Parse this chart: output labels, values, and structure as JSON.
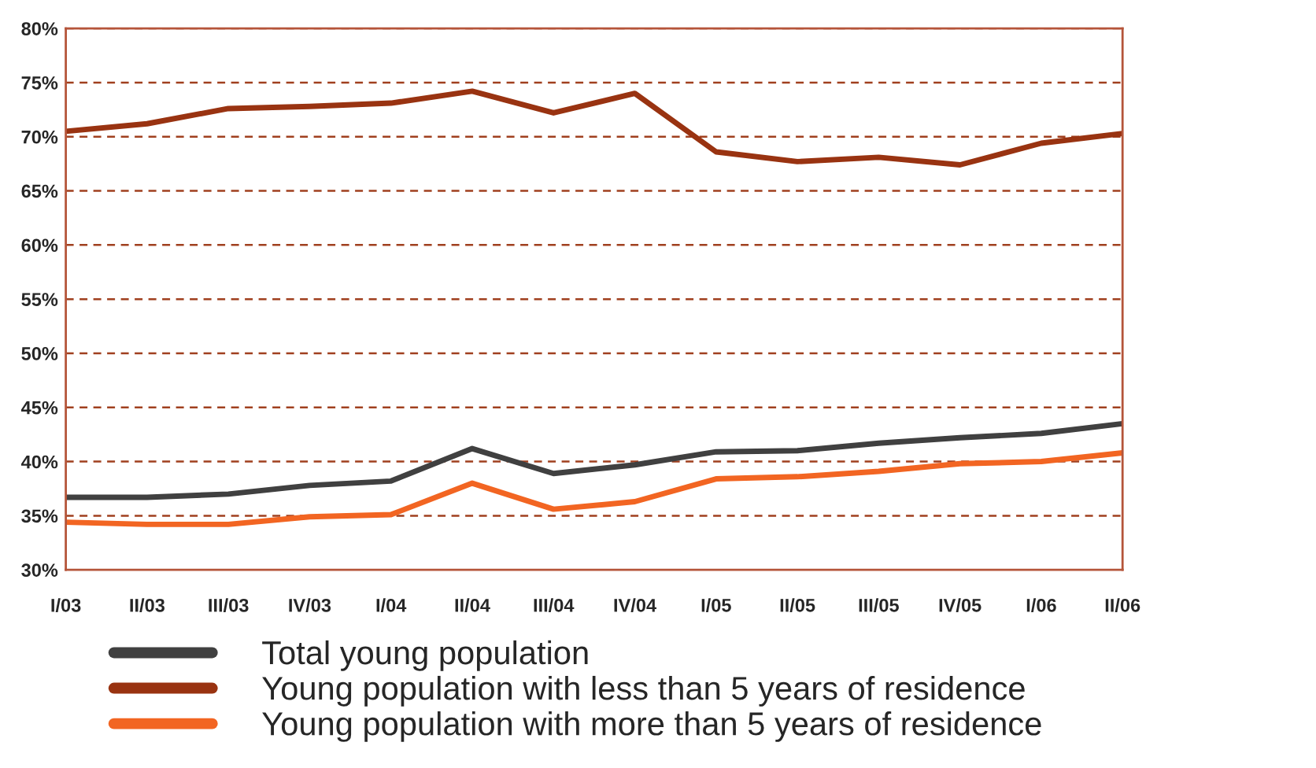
{
  "chart_data": {
    "type": "line",
    "categories": [
      "I/03",
      "II/03",
      "III/03",
      "IV/03",
      "I/04",
      "II/04",
      "III/04",
      "IV/04",
      "I/05",
      "II/05",
      "III/05",
      "IV/05",
      "I/06",
      "II/06"
    ],
    "series": [
      {
        "name": "Total young population",
        "color": "#404040",
        "values": [
          36.7,
          36.7,
          37.0,
          37.8,
          38.2,
          41.2,
          38.9,
          39.7,
          40.9,
          41.0,
          41.7,
          42.2,
          42.6,
          43.5
        ]
      },
      {
        "name": "Young population with less than 5 years of residence",
        "color": "#993311",
        "values": [
          70.5,
          71.2,
          72.6,
          72.8,
          73.1,
          74.2,
          72.2,
          74.0,
          68.6,
          67.7,
          68.1,
          67.4,
          69.4,
          70.3
        ]
      },
      {
        "name": "Young population with more than 5 years of residence",
        "color": "#f26522",
        "values": [
          34.4,
          34.2,
          34.2,
          34.9,
          35.1,
          38.0,
          35.6,
          36.3,
          38.4,
          38.6,
          39.1,
          39.8,
          40.0,
          40.8
        ]
      }
    ],
    "ylim": [
      30,
      80
    ],
    "yticks": [
      {
        "value": 30,
        "label": "30%"
      },
      {
        "value": 35,
        "label": "35%"
      },
      {
        "value": 40,
        "label": "40%"
      },
      {
        "value": 45,
        "label": "45%"
      },
      {
        "value": 50,
        "label": "50%"
      },
      {
        "value": 55,
        "label": "55%"
      },
      {
        "value": 60,
        "label": "60%"
      },
      {
        "value": 65,
        "label": "65%"
      },
      {
        "value": 70,
        "label": "70%"
      },
      {
        "value": 75,
        "label": "75%"
      },
      {
        "value": 80,
        "label": "80%"
      }
    ],
    "grid": "y",
    "legend": "bottom left",
    "marker": "none",
    "line_style": "solid"
  }
}
